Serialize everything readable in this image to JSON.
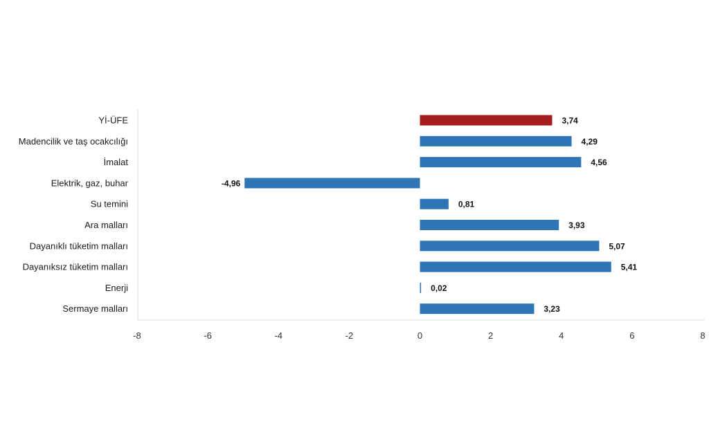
{
  "chart_data": {
    "type": "bar",
    "orientation": "horizontal",
    "categories": [
      "Yİ-ÜFE",
      "Madencilik ve taş ocakcılığı",
      "İmalat",
      "Elektrik, gaz, buhar",
      "Su temini",
      "Ara malları",
      "Dayanıklı tüketim malları",
      "Dayanıksız tüketim malları",
      "Enerji",
      "Sermaye malları"
    ],
    "values": [
      3.74,
      4.29,
      4.56,
      -4.96,
      0.81,
      3.93,
      5.07,
      5.41,
      0.02,
      3.23
    ],
    "value_labels": [
      "3,74",
      "4,29",
      "4,56",
      "-4,96",
      "0,81",
      "3,93",
      "5,07",
      "5,41",
      "0,02",
      "3,23"
    ],
    "bar_colors": [
      "#a51c1c",
      "#2e75b6",
      "#2e75b6",
      "#2e75b6",
      "#2e75b6",
      "#2e75b6",
      "#2e75b6",
      "#2e75b6",
      "#2e75b6",
      "#2e75b6"
    ],
    "xlim": [
      -8,
      8
    ],
    "xticks": [
      -8,
      -6,
      -4,
      -2,
      0,
      2,
      4,
      6,
      8
    ],
    "title": "",
    "xlabel": "",
    "ylabel": "",
    "grid": false,
    "legend": "none",
    "axis_color": "#d9d9d9"
  }
}
